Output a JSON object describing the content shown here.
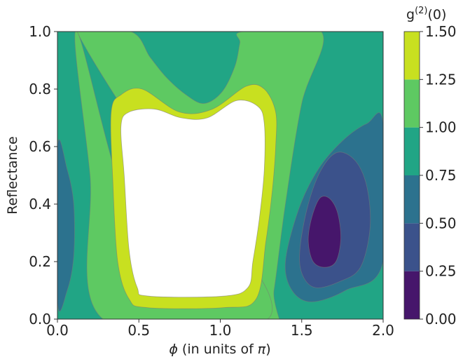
{
  "chart_data": {
    "type": "contour",
    "xlabel": "ϕ (in units of π)",
    "xlabel_symbol": "ϕ",
    "xlabel_mid": " (in units of ",
    "xlabel_pi": "π",
    "xlabel_end": ")",
    "ylabel": "Reflectance",
    "xlim": [
      0.0,
      2.0
    ],
    "ylim": [
      0.0,
      1.0
    ],
    "x_ticks": [
      "0.0",
      "0.5",
      "1.0",
      "1.5",
      "2.0"
    ],
    "y_ticks": [
      "0.0",
      "0.2",
      "0.4",
      "0.6",
      "0.8",
      "1.0"
    ],
    "colorbar": {
      "title_base": "g",
      "title_sup": "(2)",
      "title_tail": "(0)",
      "levels": [
        0.0,
        0.25,
        0.5,
        0.75,
        1.0,
        1.25,
        1.5
      ],
      "tick_labels": [
        "0.00",
        "0.25",
        "0.50",
        "0.75",
        "1.00",
        "1.25",
        "1.50"
      ],
      "colors": [
        "#46166b",
        "#3b528b",
        "#2c728e",
        "#21a585",
        "#5ec962",
        "#c8e020"
      ]
    },
    "regions": [
      {
        "level_range": [
          0.75,
          1.0
        ],
        "color": "#21a585",
        "shape": [
          [
            0,
            0
          ],
          [
            2,
            0
          ],
          [
            2,
            1
          ],
          [
            0,
            1
          ]
        ]
      },
      {
        "level_range": [
          0.5,
          0.75
        ],
        "color": "#2c728e",
        "shape": [
          [
            0,
            0.06
          ],
          [
            0.06,
            0.1
          ],
          [
            0.1,
            0.22
          ],
          [
            0.1,
            0.4
          ],
          [
            0.06,
            0.52
          ],
          [
            0,
            0.6
          ]
        ]
      },
      {
        "level_range": [
          1.0,
          1.25
        ],
        "color": "#5ec962",
        "shape": [
          [
            0.12,
            1
          ],
          [
            0.45,
            1
          ],
          [
            0.57,
            0.91
          ],
          [
            0.67,
            0.84
          ],
          [
            0.79,
            0.78
          ],
          [
            0.9,
            0.75
          ],
          [
            1.01,
            0.79
          ],
          [
            1.09,
            0.88
          ],
          [
            1.12,
            0.96
          ],
          [
            1.14,
            1
          ],
          [
            1.62,
            1
          ],
          [
            1.5,
            0.75
          ],
          [
            1.4,
            0.4
          ],
          [
            1.33,
            0.1
          ],
          [
            1.29,
            0
          ]
        ]
      },
      {
        "level_range": [
          1.0,
          1.25
        ],
        "color": "#5ec962",
        "shape": [
          [
            0.12,
            1
          ],
          [
            0.2,
            0.5
          ],
          [
            0.28,
            0
          ],
          [
            1.29,
            0
          ],
          [
            1.0,
            0.3
          ],
          [
            0.5,
            0.3
          ]
        ]
      },
      {
        "level_range": [
          1.25,
          1.5
        ],
        "color": "#c8e020",
        "shape": [
          [
            0.34,
            0.48
          ],
          [
            0.33,
            0.72
          ],
          [
            0.39,
            0.78
          ],
          [
            0.52,
            0.8
          ],
          [
            0.75,
            0.72
          ],
          [
            0.95,
            0.73
          ],
          [
            1.16,
            0.81
          ],
          [
            1.27,
            0.8
          ],
          [
            1.34,
            0.72
          ],
          [
            1.34,
            0.6
          ],
          [
            1.32,
            0.45
          ],
          [
            1.28,
            0.27
          ],
          [
            1.22,
            0.07
          ],
          [
            1.02,
            0.04
          ],
          [
            0.55,
            0.04
          ],
          [
            0.44,
            0.07
          ],
          [
            0.37,
            0.2
          ]
        ]
      },
      {
        "level_range": [
          1.5,
          1.5
        ],
        "color": "#ffffff",
        "shape": [
          [
            0.41,
            0.5
          ],
          [
            0.39,
            0.67
          ],
          [
            0.44,
            0.72
          ],
          [
            0.6,
            0.73
          ],
          [
            0.76,
            0.7
          ],
          [
            0.92,
            0.7
          ],
          [
            1.1,
            0.76
          ],
          [
            1.23,
            0.74
          ],
          [
            1.27,
            0.68
          ],
          [
            1.27,
            0.52
          ],
          [
            1.24,
            0.35
          ],
          [
            1.2,
            0.2
          ],
          [
            1.17,
            0.11
          ],
          [
            1.02,
            0.08
          ],
          [
            0.56,
            0.08
          ],
          [
            0.49,
            0.11
          ],
          [
            0.44,
            0.24
          ]
        ]
      },
      {
        "level_range": [
          0.5,
          0.75
        ],
        "color": "#2c728e",
        "shape": [
          [
            1.56,
            0.06
          ],
          [
            1.77,
            0.1
          ],
          [
            2,
            0.2
          ],
          [
            2,
            0.68
          ],
          [
            1.9,
            0.68
          ],
          [
            1.75,
            0.62
          ],
          [
            1.6,
            0.52
          ],
          [
            1.48,
            0.38
          ],
          [
            1.4,
            0.2
          ],
          [
            1.44,
            0.1
          ]
        ]
      },
      {
        "level_range": [
          0.25,
          0.5
        ],
        "color": "#3b528b",
        "shape": [
          [
            1.58,
            0.11
          ],
          [
            1.73,
            0.13
          ],
          [
            1.86,
            0.18
          ],
          [
            1.92,
            0.32
          ],
          [
            1.9,
            0.46
          ],
          [
            1.83,
            0.55
          ],
          [
            1.72,
            0.58
          ],
          [
            1.62,
            0.52
          ],
          [
            1.54,
            0.4
          ],
          [
            1.49,
            0.25
          ],
          [
            1.5,
            0.16
          ]
        ]
      },
      {
        "level_range": [
          0.0,
          0.25
        ],
        "color": "#46166b",
        "shape": [
          [
            1.64,
            0.18
          ],
          [
            1.71,
            0.2
          ],
          [
            1.74,
            0.28
          ],
          [
            1.72,
            0.37
          ],
          [
            1.67,
            0.42
          ],
          [
            1.61,
            0.42
          ],
          [
            1.56,
            0.35
          ],
          [
            1.54,
            0.27
          ],
          [
            1.57,
            0.2
          ]
        ]
      }
    ]
  }
}
